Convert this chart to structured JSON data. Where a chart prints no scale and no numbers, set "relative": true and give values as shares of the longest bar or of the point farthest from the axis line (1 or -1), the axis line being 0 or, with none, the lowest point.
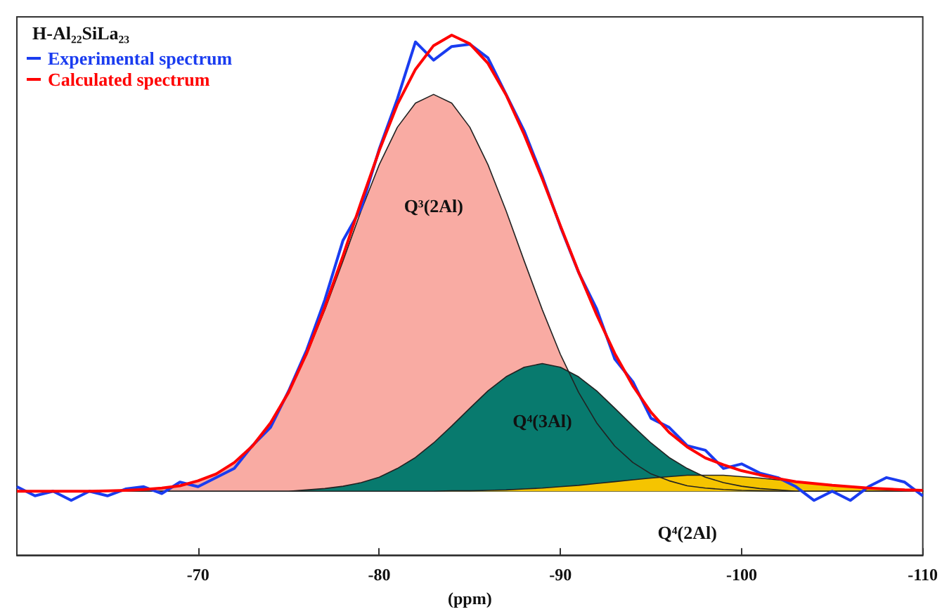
{
  "chart_data": {
    "type": "line",
    "title": "H-Al₂₂SiLa₂₃",
    "xlabel": "(ppm)",
    "relative": true,
    "legend": "top left",
    "grid": false,
    "marker": "none",
    "xlim": [
      -60,
      -110
    ],
    "xticks": [
      -70,
      -80,
      -90,
      -100,
      -110
    ],
    "x": [
      -60,
      -61,
      -62,
      -63,
      -64,
      -65,
      -66,
      -67,
      -68,
      -69,
      -70,
      -71,
      -72,
      -73,
      -74,
      -75,
      -76,
      -77,
      -78,
      -79,
      -80,
      -81,
      -82,
      -83,
      -84,
      -85,
      -86,
      -87,
      -88,
      -89,
      -90,
      -91,
      -92,
      -93,
      -94,
      -95,
      -96,
      -97,
      -98,
      -99,
      -100,
      -101,
      -102,
      -103,
      -104,
      -105,
      -106,
      -107,
      -108,
      -109,
      -110
    ],
    "series": [
      {
        "name": "Q³(2Al)",
        "type": "area",
        "color": "#f9aba3",
        "values": [
          0,
          0,
          0,
          0,
          0,
          0.001,
          0.002,
          0.004,
          0.007,
          0.012,
          0.023,
          0.038,
          0.063,
          0.099,
          0.15,
          0.217,
          0.3,
          0.398,
          0.505,
          0.615,
          0.716,
          0.798,
          0.851,
          0.87,
          0.851,
          0.798,
          0.716,
          0.615,
          0.505,
          0.398,
          0.3,
          0.217,
          0.15,
          0.099,
          0.063,
          0.038,
          0.023,
          0.012,
          0.007,
          0.004,
          0.002,
          0.001,
          0,
          0,
          0,
          0,
          0,
          0,
          0,
          0,
          0
        ]
      },
      {
        "name": "Q⁴(3Al)",
        "type": "area",
        "color": "#087a6e",
        "values": [
          0,
          0,
          0,
          0,
          0,
          0,
          0,
          0,
          0,
          0,
          0,
          0,
          0,
          0,
          0,
          0,
          0.003,
          0.006,
          0.011,
          0.019,
          0.031,
          0.05,
          0.074,
          0.106,
          0.143,
          0.182,
          0.22,
          0.251,
          0.272,
          0.28,
          0.272,
          0.251,
          0.22,
          0.182,
          0.143,
          0.106,
          0.074,
          0.05,
          0.031,
          0.019,
          0.011,
          0.006,
          0.003,
          0,
          0,
          0,
          0,
          0,
          0,
          0,
          0
        ]
      },
      {
        "name": "Q⁴(2Al)",
        "type": "area",
        "color": "#f5c400",
        "values": [
          0,
          0,
          0,
          0,
          0,
          0,
          0,
          0,
          0,
          0,
          0,
          0,
          0,
          0,
          0,
          0,
          0,
          0,
          0,
          0,
          0,
          0,
          0,
          0,
          0.001,
          0.001,
          0.002,
          0.003,
          0.005,
          0.007,
          0.01,
          0.013,
          0.017,
          0.021,
          0.025,
          0.029,
          0.032,
          0.035,
          0.035,
          0.035,
          0.032,
          0.029,
          0.025,
          0.021,
          0.017,
          0.013,
          0.01,
          0.007,
          0.005,
          0.003,
          0.002
        ]
      },
      {
        "name": "Experimental spectrum",
        "color": "#1a3cf0",
        "values": [
          0.01,
          -0.01,
          0,
          -0.02,
          0,
          -0.01,
          0.005,
          0.01,
          -0.005,
          0.02,
          0.01,
          0.03,
          0.05,
          0.1,
          0.14,
          0.22,
          0.31,
          0.42,
          0.55,
          0.62,
          0.75,
          0.86,
          0.985,
          0.945,
          0.975,
          0.98,
          0.95,
          0.87,
          0.79,
          0.69,
          0.58,
          0.48,
          0.4,
          0.29,
          0.24,
          0.16,
          0.14,
          0.1,
          0.09,
          0.05,
          0.06,
          0.04,
          0.03,
          0.01,
          -0.02,
          0,
          -0.02,
          0.01,
          0.03,
          0.02,
          -0.01
        ]
      },
      {
        "name": "Calculated spectrum",
        "color": "#ff0000",
        "values": [
          0,
          0,
          0,
          0,
          0,
          0.001,
          0.002,
          0.004,
          0.007,
          0.012,
          0.023,
          0.038,
          0.063,
          0.099,
          0.15,
          0.217,
          0.303,
          0.404,
          0.516,
          0.634,
          0.747,
          0.848,
          0.925,
          0.977,
          1,
          0.981,
          0.938,
          0.869,
          0.782,
          0.685,
          0.582,
          0.481,
          0.387,
          0.302,
          0.231,
          0.173,
          0.129,
          0.097,
          0.073,
          0.058,
          0.045,
          0.036,
          0.028,
          0.021,
          0.017,
          0.013,
          0.01,
          0.007,
          0.005,
          0.003,
          0.002
        ]
      }
    ]
  }
}
